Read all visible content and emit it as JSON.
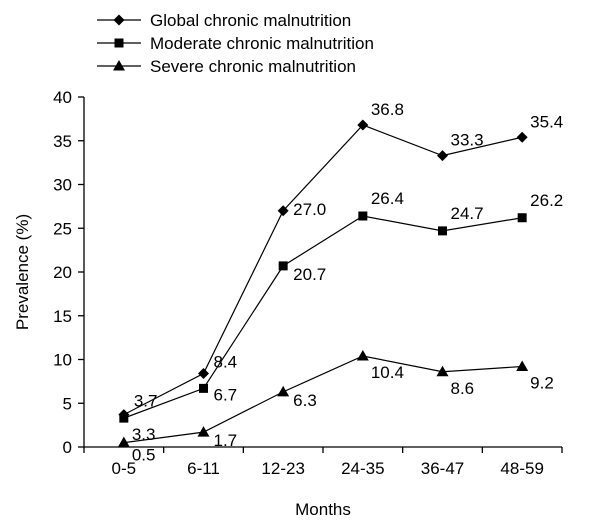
{
  "chart_data": {
    "type": "line",
    "title": "",
    "xlabel": "Months",
    "ylabel": "Prevalence  (%)",
    "categories": [
      "0-5",
      "6-11",
      "12-23",
      "24-35",
      "36-47",
      "48-59"
    ],
    "ylim": [
      0,
      40
    ],
    "yticks": [
      "0",
      "5",
      "10",
      "15",
      "20",
      "25",
      "30",
      "35",
      "40"
    ],
    "grid": false,
    "legend_position": "top-left",
    "series": [
      {
        "name": "Global chronic malnutrition",
        "marker": "diamond",
        "values": [
          3.7,
          8.4,
          27.0,
          36.8,
          33.3,
          35.4
        ],
        "labels": [
          "3.7",
          "8.4",
          "27.0",
          "36.8",
          "33.3",
          "35.4"
        ]
      },
      {
        "name": "Moderate chronic malnutrition",
        "marker": "square",
        "values": [
          3.3,
          6.7,
          20.7,
          26.4,
          24.7,
          26.2
        ],
        "labels": [
          "3.3",
          "6.7",
          "20.7",
          "26.4",
          "24.7",
          "26.2"
        ]
      },
      {
        "name": "Severe chronic malnutrition",
        "marker": "triangle",
        "values": [
          0.5,
          1.7,
          6.3,
          10.4,
          8.6,
          9.2
        ],
        "labels": [
          "0.5",
          "1.7",
          "6.3",
          "10.4",
          "8.6",
          "9.2"
        ]
      }
    ]
  }
}
